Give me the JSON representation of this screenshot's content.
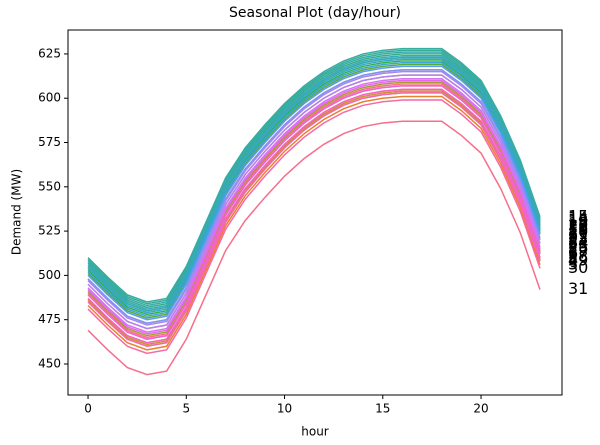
{
  "chart_data": {
    "type": "line",
    "title": "Seasonal Plot (day/hour)",
    "x_label": "hour",
    "y_label": "Demand (MW)",
    "x": [
      0,
      1,
      2,
      3,
      4,
      5,
      6,
      7,
      8,
      9,
      10,
      11,
      12,
      13,
      14,
      15,
      16,
      17,
      18,
      19,
      20,
      21,
      22,
      23
    ],
    "xlim": [
      -1.02,
      24.12
    ],
    "xticks": [
      0,
      5,
      10,
      15,
      20
    ],
    "ylim": [
      432.5,
      638.5
    ],
    "yticks": [
      450,
      475,
      500,
      525,
      550,
      575,
      600,
      625
    ],
    "series": [
      {
        "name": "1",
        "color": "#f77189",
        "values": [
          490,
          479,
          469,
          465,
          467,
          485,
          510,
          535,
          552,
          565,
          577,
          587,
          595,
          601,
          605,
          607,
          608,
          608,
          608,
          600,
          590,
          570,
          545,
          513
        ]
      },
      {
        "name": "2",
        "color": "#f57a5a",
        "values": [
          487,
          476,
          466,
          462,
          464,
          482,
          507,
          532,
          549,
          562,
          574,
          584,
          592,
          598,
          602,
          604,
          605,
          605,
          605,
          597,
          587,
          567,
          542,
          510
        ]
      },
      {
        "name": "3",
        "color": "#e8812f",
        "values": [
          483,
          472,
          462,
          458,
          460,
          478,
          503,
          528,
          545,
          558,
          570,
          580,
          588,
          594,
          598,
          600,
          601,
          601,
          601,
          593,
          583,
          563,
          538,
          506
        ]
      },
      {
        "name": "4",
        "color": "#d78a31",
        "values": [
          485,
          474,
          464,
          460,
          462,
          480,
          505,
          530,
          547,
          560,
          572,
          582,
          590,
          596,
          600,
          602,
          603,
          603,
          603,
          595,
          585,
          565,
          540,
          508
        ]
      },
      {
        "name": "5",
        "color": "#c89131",
        "values": [
          486,
          475,
          465,
          461,
          463,
          481,
          506,
          531,
          548,
          561,
          573,
          583,
          591,
          597,
          601,
          603,
          604,
          604,
          604,
          596,
          586,
          566,
          541,
          509
        ]
      },
      {
        "name": "6",
        "color": "#b89731",
        "values": [
          489,
          478,
          468,
          464,
          466,
          484,
          509,
          534,
          551,
          564,
          576,
          586,
          594,
          600,
          604,
          606,
          607,
          607,
          607,
          599,
          589,
          569,
          544,
          512
        ]
      },
      {
        "name": "7",
        "color": "#a69d31",
        "values": [
          491,
          480,
          470,
          466,
          468,
          486,
          511,
          536,
          553,
          566,
          578,
          588,
          596,
          602,
          606,
          608,
          609,
          609,
          609,
          601,
          591,
          571,
          546,
          514
        ]
      },
      {
        "name": "8",
        "color": "#93a331",
        "values": [
          495,
          484,
          474,
          470,
          472,
          490,
          515,
          540,
          557,
          570,
          582,
          592,
          600,
          606,
          610,
          612,
          613,
          613,
          613,
          605,
          595,
          575,
          550,
          518
        ]
      },
      {
        "name": "9",
        "color": "#7ca831",
        "values": [
          498,
          487,
          477,
          473,
          475,
          493,
          518,
          543,
          560,
          573,
          585,
          595,
          603,
          609,
          613,
          615,
          616,
          616,
          616,
          608,
          598,
          578,
          553,
          521
        ]
      },
      {
        "name": "10",
        "color": "#55ae31",
        "values": [
          501,
          490,
          480,
          476,
          478,
          496,
          521,
          546,
          563,
          576,
          588,
          598,
          606,
          612,
          616,
          618,
          619,
          619,
          619,
          611,
          601,
          581,
          556,
          524
        ]
      },
      {
        "name": "11",
        "color": "#32b14a",
        "values": [
          503,
          492,
          482,
          478,
          480,
          498,
          523,
          548,
          565,
          578,
          590,
          600,
          608,
          614,
          618,
          620,
          621,
          621,
          621,
          613,
          603,
          583,
          558,
          526
        ]
      },
      {
        "name": "12",
        "color": "#34af6e",
        "values": [
          505,
          494,
          484,
          480,
          482,
          500,
          525,
          550,
          567,
          580,
          592,
          602,
          610,
          616,
          620,
          622,
          623,
          623,
          623,
          615,
          605,
          585,
          560,
          528
        ]
      },
      {
        "name": "13",
        "color": "#35ae84",
        "values": [
          507,
          496,
          486,
          482,
          484,
          502,
          527,
          552,
          569,
          582,
          594,
          604,
          612,
          618,
          622,
          624,
          625,
          625,
          625,
          617,
          607,
          587,
          562,
          530
        ]
      },
      {
        "name": "14",
        "color": "#35ad94",
        "values": [
          509,
          498,
          488,
          484,
          486,
          504,
          529,
          554,
          571,
          584,
          596,
          606,
          614,
          620,
          624,
          626,
          627,
          627,
          627,
          619,
          609,
          589,
          564,
          532
        ]
      },
      {
        "name": "15",
        "color": "#36aca2",
        "values": [
          510,
          499,
          489,
          485,
          487,
          505,
          530,
          555,
          572,
          585,
          597,
          607,
          615,
          621,
          625,
          627,
          628,
          628,
          628,
          620,
          610,
          590,
          565,
          533
        ]
      },
      {
        "name": "16",
        "color": "#37abaf",
        "values": [
          508,
          497,
          487,
          483,
          485,
          503,
          528,
          553,
          570,
          583,
          595,
          605,
          613,
          619,
          623,
          625,
          626,
          626,
          626,
          618,
          608,
          588,
          563,
          531
        ]
      },
      {
        "name": "17",
        "color": "#38a9bd",
        "values": [
          506,
          495,
          485,
          481,
          483,
          501,
          526,
          551,
          568,
          581,
          593,
          603,
          611,
          617,
          621,
          623,
          624,
          624,
          624,
          616,
          606,
          586,
          561,
          529
        ]
      },
      {
        "name": "18",
        "color": "#39a7cc",
        "values": [
          504,
          493,
          483,
          479,
          481,
          499,
          524,
          549,
          566,
          579,
          591,
          601,
          609,
          615,
          619,
          621,
          622,
          622,
          622,
          614,
          604,
          584,
          559,
          527
        ]
      },
      {
        "name": "19",
        "color": "#3ba4df",
        "values": [
          502,
          491,
          481,
          477,
          479,
          497,
          522,
          547,
          564,
          577,
          589,
          599,
          607,
          613,
          617,
          619,
          620,
          620,
          620,
          612,
          602,
          582,
          557,
          525
        ]
      },
      {
        "name": "20",
        "color": "#36abb0",
        "values": [
          505,
          494,
          484,
          480,
          482,
          500,
          525,
          550,
          567,
          580,
          592,
          602,
          610,
          616,
          620,
          622,
          623,
          623,
          623,
          615,
          605,
          585,
          560,
          528
        ]
      },
      {
        "name": "21",
        "color": "#5b9af5",
        "values": [
          500,
          489,
          479,
          475,
          477,
          495,
          520,
          545,
          562,
          575,
          587,
          597,
          605,
          611,
          615,
          617,
          618,
          618,
          618,
          610,
          600,
          580,
          555,
          523
        ]
      },
      {
        "name": "22",
        "color": "#8591f5",
        "values": [
          498,
          487,
          477,
          473,
          475,
          493,
          518,
          543,
          560,
          573,
          585,
          595,
          603,
          609,
          613,
          615,
          616,
          616,
          616,
          608,
          598,
          578,
          553,
          521
        ]
      },
      {
        "name": "23",
        "color": "#a388f4",
        "values": [
          497,
          486,
          476,
          472,
          474,
          492,
          517,
          542,
          559,
          572,
          584,
          594,
          602,
          608,
          612,
          614,
          615,
          615,
          615,
          607,
          597,
          577,
          552,
          520
        ]
      },
      {
        "name": "24",
        "color": "#bb7ff4",
        "values": [
          495,
          484,
          474,
          470,
          472,
          490,
          515,
          540,
          557,
          570,
          582,
          592,
          600,
          606,
          610,
          612,
          613,
          613,
          613,
          605,
          595,
          575,
          550,
          518
        ]
      },
      {
        "name": "25",
        "color": "#d374f4",
        "values": [
          493,
          482,
          472,
          468,
          470,
          488,
          513,
          538,
          555,
          568,
          580,
          590,
          598,
          604,
          608,
          610,
          611,
          611,
          611,
          603,
          593,
          573,
          548,
          516
        ]
      },
      {
        "name": "26",
        "color": "#ea66ee",
        "values": [
          492,
          481,
          471,
          467,
          469,
          487,
          512,
          537,
          554,
          567,
          579,
          589,
          597,
          603,
          607,
          609,
          610,
          610,
          610,
          602,
          592,
          572,
          547,
          515
        ]
      },
      {
        "name": "27",
        "color": "#f55fd9",
        "values": [
          489,
          478,
          468,
          464,
          466,
          484,
          509,
          534,
          551,
          564,
          576,
          586,
          594,
          600,
          604,
          606,
          607,
          607,
          607,
          599,
          589,
          569,
          544,
          512
        ]
      },
      {
        "name": "28",
        "color": "#f564c3",
        "values": [
          487,
          476,
          466,
          462,
          464,
          482,
          507,
          532,
          549,
          562,
          574,
          584,
          592,
          598,
          602,
          604,
          605,
          605,
          605,
          597,
          587,
          567,
          542,
          510
        ]
      },
      {
        "name": "29",
        "color": "#f567b1",
        "values": [
          485,
          474,
          464,
          460,
          462,
          480,
          505,
          530,
          547,
          560,
          572,
          582,
          590,
          596,
          600,
          602,
          603,
          603,
          603,
          595,
          585,
          565,
          540,
          508
        ]
      },
      {
        "name": "30",
        "color": "#f669a1",
        "values": [
          481,
          470,
          460,
          456,
          458,
          476,
          501,
          526,
          543,
          556,
          568,
          578,
          586,
          592,
          596,
          598,
          599,
          599,
          599,
          591,
          581,
          561,
          536,
          504
        ]
      },
      {
        "name": "31",
        "color": "#f76e8c",
        "values": [
          469,
          458,
          448,
          444,
          446,
          464,
          489,
          514,
          531,
          544,
          556,
          566,
          574,
          580,
          584,
          586,
          587,
          587,
          587,
          579,
          569,
          549,
          524,
          492
        ]
      }
    ]
  }
}
